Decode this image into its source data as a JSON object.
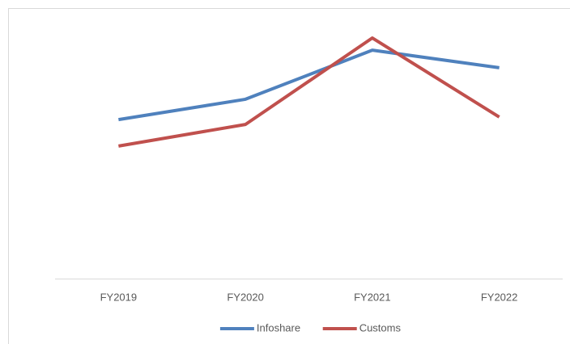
{
  "chart_data": {
    "type": "line",
    "categories": [
      "FY2019",
      "FY2020",
      "FY2021",
      "FY2022"
    ],
    "series": [
      {
        "name": "Infoshare",
        "color": "#4f81bd",
        "values": [
          62.5,
          70.5,
          89.8,
          82.9
        ]
      },
      {
        "name": "Customs",
        "color": "#c0504d",
        "values": [
          52.1,
          60.6,
          94.6,
          63.5
        ]
      }
    ],
    "ylim": [
      0,
      100
    ],
    "legend": "bottom"
  }
}
